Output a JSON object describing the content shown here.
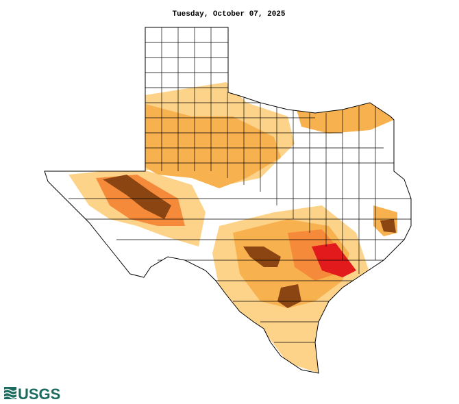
{
  "title": "Tuesday, October 07, 2025",
  "logo": "USGS"
}
